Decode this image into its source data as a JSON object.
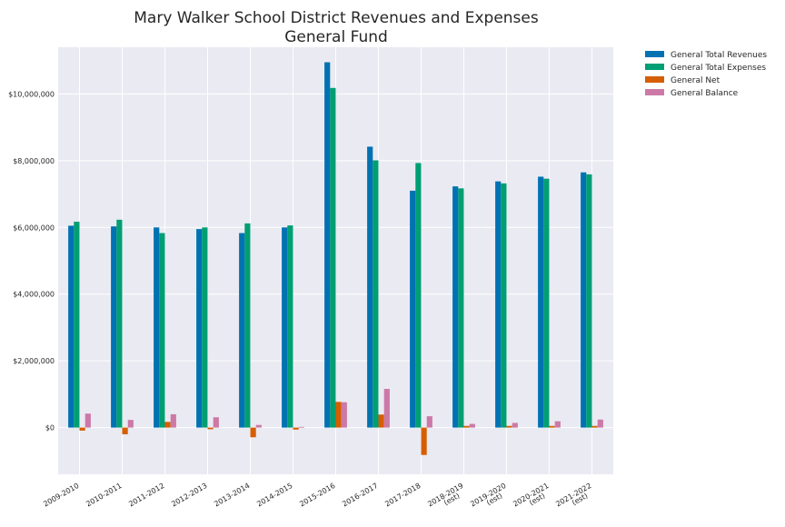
{
  "chart_data": {
    "type": "bar",
    "title": "Mary Walker School District Revenues and Expenses",
    "subtitle": "General Fund",
    "categories": [
      [
        "2009-2010"
      ],
      [
        "2010-2011"
      ],
      [
        "2011-2012"
      ],
      [
        "2012-2013"
      ],
      [
        "2013-2014"
      ],
      [
        "2014-2015"
      ],
      [
        "2015-2016"
      ],
      [
        "2016-2017"
      ],
      [
        "2017-2018"
      ],
      [
        "2018-2019",
        "(est)"
      ],
      [
        "2019-2020",
        "(est)"
      ],
      [
        "2020-2021",
        "(est)"
      ],
      [
        "2021-2022",
        "(est)"
      ]
    ],
    "series": [
      {
        "name": "General Total Revenues",
        "color": "#0072b2",
        "values": [
          6050000,
          6030000,
          6000000,
          5950000,
          5830000,
          6000000,
          10950000,
          8420000,
          7100000,
          7230000,
          7380000,
          7520000,
          7650000
        ]
      },
      {
        "name": "General Total Expenses",
        "color": "#009e73",
        "values": [
          6170000,
          6230000,
          5830000,
          6000000,
          6120000,
          6060000,
          10180000,
          8010000,
          7930000,
          7170000,
          7320000,
          7460000,
          7590000
        ]
      },
      {
        "name": "General Net",
        "color": "#d55e00",
        "values": [
          -90000,
          -200000,
          170000,
          -50000,
          -290000,
          -60000,
          770000,
          390000,
          -820000,
          50000,
          50000,
          50000,
          50000
        ]
      },
      {
        "name": "General Balance",
        "color": "#cc79a7",
        "values": [
          420000,
          230000,
          400000,
          310000,
          80000,
          20000,
          760000,
          1160000,
          340000,
          110000,
          140000,
          190000,
          240000
        ]
      }
    ],
    "yticks": [
      0,
      2000000,
      4000000,
      6000000,
      8000000,
      10000000
    ],
    "ytick_labels": [
      "$0",
      "$2,000,000",
      "$4,000,000",
      "$6,000,000",
      "$8,000,000",
      "$10,000,000"
    ],
    "ylim": [
      -1400000,
      11400000
    ],
    "grid": true,
    "legend_position": "outside top-right"
  }
}
